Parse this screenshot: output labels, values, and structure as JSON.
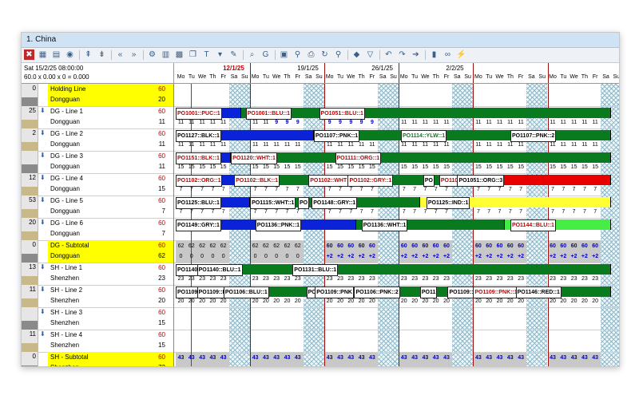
{
  "window": {
    "title": "1. China"
  },
  "toolbar": {
    "icons": [
      "close-icon",
      "grid-icon",
      "table-icon",
      "eye-icon",
      "expand-icon",
      "collapse-icon",
      "prev-icon",
      "next-icon",
      "settings-icon",
      "chart-icon",
      "palette-icon",
      "copy-icon",
      "text-icon",
      "arrow-down-icon",
      "tool-icon",
      "binoculars-icon",
      "g-icon",
      "save-icon",
      "pin-icon",
      "print-icon",
      "refresh-icon",
      "search-icon",
      "tag-icon",
      "filter-icon",
      "undo-icon",
      "redo-icon",
      "forward-icon",
      "traffic-light-icon",
      "chain-icon",
      "lightning-icon"
    ]
  },
  "info": {
    "datetime": "Sat 15/2/25 08:00:00",
    "formula": "60.0 x 0.00 x 0 = 0.000"
  },
  "dates": {
    "weeks": [
      {
        "label": "12/1/25",
        "red": true
      },
      {
        "label": "19/1/25",
        "red": false
      },
      {
        "label": "26/1/25",
        "red": false
      },
      {
        "label": "2/2/25",
        "red": false
      }
    ],
    "days": [
      "Mo",
      "Tu",
      "We",
      "Th",
      "Fr",
      "Sa",
      "Su",
      "Mo",
      "Tu",
      "We",
      "Th",
      "Fr",
      "Sa",
      "Su",
      "Mo",
      "Tu",
      "We",
      "Th",
      "Fr",
      "Sa",
      "Su",
      "Mo",
      "Tu",
      "We",
      "Th",
      "Fr",
      "Sa",
      "Su",
      "Mo",
      "Tu",
      "We",
      "Th",
      "Fr",
      "Sa",
      "Su",
      "Mo",
      "Tu",
      "We",
      "Th",
      "Fr",
      "Sa",
      "Su"
    ]
  },
  "lines": [
    {
      "num": "0",
      "name": "Holding Line",
      "city": "Dongguan",
      "cap": "60",
      "val": "20",
      "sub": true,
      "arrow": false
    },
    {
      "num": "25",
      "name": "DG - Line 1",
      "city": "Dongguan",
      "cap": "60",
      "val": "11",
      "sub": false,
      "arrow": true
    },
    {
      "num": "2",
      "name": "DG - Line 2",
      "city": "Dongguan",
      "cap": "60",
      "val": "11",
      "sub": false,
      "arrow": true
    },
    {
      "num": "",
      "name": "DG - Line 3",
      "city": "Dongguan",
      "cap": "60",
      "val": "11",
      "sub": false,
      "arrow": true
    },
    {
      "num": "12",
      "name": "DG - Line 4",
      "city": "Dongguan",
      "cap": "60",
      "val": "15",
      "sub": false,
      "arrow": true
    },
    {
      "num": "53",
      "name": "DG - Line 5",
      "city": "Dongguan",
      "cap": "60",
      "val": "7",
      "sub": false,
      "arrow": true
    },
    {
      "num": "20",
      "name": "DG - Line 6",
      "city": "Dongguan",
      "cap": "60",
      "val": "7",
      "sub": false,
      "arrow": true
    },
    {
      "num": "0",
      "name": "DG - Subtotal",
      "city": "Dongguan",
      "cap": "60",
      "val": "62",
      "sub": true,
      "arrow": false
    },
    {
      "num": "13",
      "name": "SH - Line 1",
      "city": "Shenzhen",
      "cap": "60",
      "val": "23",
      "sub": false,
      "arrow": true
    },
    {
      "num": "11",
      "name": "SH - Line 2",
      "city": "Shenzhen",
      "cap": "60",
      "val": "20",
      "sub": false,
      "arrow": true
    },
    {
      "num": "",
      "name": "SH - Line 3",
      "city": "Shenzhen",
      "cap": "60",
      "val": "15",
      "sub": false,
      "arrow": true
    },
    {
      "num": "11",
      "name": "SH - Line 4",
      "city": "Shenzhen",
      "cap": "60",
      "val": "15",
      "sub": false,
      "arrow": true
    },
    {
      "num": "0",
      "name": "SH - Subtotal",
      "city": "Shenzhen",
      "cap": "60",
      "val": "73",
      "sub": true,
      "arrow": false
    }
  ],
  "orders": [
    {
      "row": 1,
      "label": "PO1001::PUC::1"
    },
    {
      "row": 1,
      "label": "PO1001::BLU::1"
    },
    {
      "row": 1,
      "label": "PO1051::BLU::1"
    },
    {
      "row": 2,
      "label": "PO1127::BLK::1"
    },
    {
      "row": 2,
      "label": "PO1107::PNK::1"
    },
    {
      "row": 2,
      "label": "PO1114::YLW::1"
    },
    {
      "row": 2,
      "label": "PO1107::PNK::2"
    },
    {
      "row": 3,
      "label": "PO1151::BLK::1"
    },
    {
      "row": 3,
      "label": "PO1120::WHT::1"
    },
    {
      "row": 3,
      "label": "PO1111::ORG::1"
    },
    {
      "row": 4,
      "label": "PO1102::ORG::1"
    },
    {
      "row": 4,
      "label": "PO1102::BLK::1"
    },
    {
      "row": 4,
      "label": "PO1102::WHT"
    },
    {
      "row": 4,
      "label": "PO1102::GRY::1"
    },
    {
      "row": 4,
      "label": "PO"
    },
    {
      "row": 4,
      "label": "PO110"
    },
    {
      "row": 4,
      "label": "PO1051::ORG::3"
    },
    {
      "row": 5,
      "label": "PO1125::BLU::1"
    },
    {
      "row": 5,
      "label": "PO1115::WHT::1"
    },
    {
      "row": 5,
      "label": "PO"
    },
    {
      "row": 5,
      "label": "PO1148::GRY::1"
    },
    {
      "row": 5,
      "label": "PO1125::IND::1"
    },
    {
      "row": 6,
      "label": "PO1149::GRY::1"
    },
    {
      "row": 6,
      "label": "PO1136::PNK::1"
    },
    {
      "row": 6,
      "label": "PO1136::WHT::1"
    },
    {
      "row": 6,
      "label": "PO1144::BLU::1"
    },
    {
      "row": 8,
      "label": "PO1140"
    },
    {
      "row": 8,
      "label": "PO1140::BLU::1"
    },
    {
      "row": 8,
      "label": "PO1131::BLU::1"
    },
    {
      "row": 9,
      "label": "PO1109"
    },
    {
      "row": 9,
      "label": "PO1109::I"
    },
    {
      "row": 9,
      "label": "PO1106::BLU::1"
    },
    {
      "row": 9,
      "label": "PO"
    },
    {
      "row": 9,
      "label": "PO1109::PNK"
    },
    {
      "row": 9,
      "label": "PO1106::PNK::2"
    },
    {
      "row": 9,
      "label": "PO11"
    },
    {
      "row": 9,
      "label": "PO1109::"
    },
    {
      "row": 9,
      "label": "PO1109::PNK::1"
    },
    {
      "row": 9,
      "label": "PO1146::RED::1"
    }
  ],
  "rownums": [
    {
      "row": 1,
      "values": [
        "11",
        "11",
        "11",
        "11",
        "11",
        "",
        "",
        "11",
        "11",
        "9",
        "9",
        "9",
        "",
        "",
        "9",
        "9",
        "9",
        "9",
        "9",
        "",
        "",
        "11",
        "11",
        "11",
        "11",
        "11",
        "",
        "",
        "11",
        "11",
        "11",
        "11",
        "11",
        "",
        "",
        "11",
        "11",
        "11",
        "11",
        "11",
        "",
        ""
      ]
    },
    {
      "row": 2,
      "values": [
        "11",
        "11",
        "11",
        "11",
        "11",
        "",
        "",
        "11",
        "11",
        "11",
        "11",
        "11",
        "",
        "",
        "11",
        "11",
        "11",
        "11",
        "11",
        "",
        "",
        "11",
        "11",
        "11",
        "11",
        "11",
        "",
        "",
        "11",
        "11",
        "11",
        "11",
        "11",
        "",
        "",
        "11",
        "11",
        "11",
        "11",
        "11",
        "",
        ""
      ]
    },
    {
      "row": 3,
      "values": [
        "15",
        "15",
        "15",
        "15",
        "15",
        "",
        "",
        "15",
        "15",
        "15",
        "15",
        "15",
        "",
        "",
        "15",
        "15",
        "15",
        "15",
        "15",
        "",
        "",
        "15",
        "15",
        "15",
        "15",
        "15",
        "",
        "",
        "15",
        "15",
        "15",
        "15",
        "15",
        "",
        "",
        "15",
        "15",
        "15",
        "15",
        "15",
        "",
        ""
      ]
    },
    {
      "row": 4,
      "values": [
        "7",
        "7",
        "7",
        "7",
        "7",
        "",
        "",
        "7",
        "7",
        "7",
        "7",
        "7",
        "",
        "",
        "7",
        "7",
        "7",
        "7",
        "7",
        "",
        "",
        "7",
        "7",
        "7",
        "7",
        "7",
        "",
        "",
        "7",
        "7",
        "7",
        "7",
        "7",
        "",
        "",
        "7",
        "7",
        "7",
        "7",
        "7",
        "",
        ""
      ]
    },
    {
      "row": 5,
      "values": [
        "7",
        "7",
        "7",
        "7",
        "7",
        "",
        "",
        "7",
        "7",
        "7",
        "7",
        "7",
        "",
        "",
        "7",
        "7",
        "7",
        "7",
        "7",
        "",
        "",
        "7",
        "7",
        "7",
        "7",
        "7",
        "",
        "",
        "7",
        "7",
        "7",
        "7",
        "7",
        "",
        "",
        "7",
        "7",
        "7",
        "7",
        "7",
        "",
        ""
      ]
    },
    {
      "row": 7,
      "values": [
        "62",
        "62",
        "62",
        "62",
        "62",
        "",
        "",
        "62",
        "62",
        "62",
        "62",
        "62",
        "",
        "",
        "60",
        "60",
        "60",
        "60",
        "60",
        "",
        "",
        "60",
        "60",
        "60",
        "60",
        "60",
        "",
        "",
        "60",
        "60",
        "60",
        "60",
        "60",
        "",
        "",
        "60",
        "60",
        "60",
        "60",
        "60",
        "",
        ""
      ]
    },
    {
      "row": 8,
      "values": [
        "23",
        "23",
        "23",
        "23",
        "23",
        "",
        "",
        "23",
        "23",
        "23",
        "23",
        "23",
        "",
        "",
        "23",
        "23",
        "23",
        "23",
        "23",
        "",
        "",
        "23",
        "23",
        "23",
        "23",
        "23",
        "",
        "",
        "23",
        "23",
        "23",
        "23",
        "23",
        "",
        "",
        "23",
        "23",
        "23",
        "23",
        "23",
        "",
        ""
      ]
    },
    {
      "row": 9,
      "values": [
        "20",
        "20",
        "20",
        "20",
        "20",
        "",
        "",
        "20",
        "20",
        "20",
        "20",
        "20",
        "",
        "",
        "20",
        "20",
        "20",
        "20",
        "20",
        "",
        "",
        "20",
        "20",
        "20",
        "20",
        "20",
        "",
        "",
        "20",
        "20",
        "20",
        "20",
        "20",
        "",
        "",
        "20",
        "20",
        "20",
        "20",
        "20",
        "",
        ""
      ]
    },
    {
      "row": 12,
      "values": [
        "43",
        "43",
        "43",
        "43",
        "43",
        "",
        "",
        "43",
        "43",
        "43",
        "43",
        "43",
        "",
        "",
        "43",
        "43",
        "43",
        "43",
        "43",
        "",
        "",
        "43",
        "43",
        "43",
        "43",
        "43",
        "",
        "",
        "43",
        "43",
        "43",
        "43",
        "43",
        "",
        "",
        "43",
        "43",
        "43",
        "43",
        "43",
        "",
        ""
      ]
    }
  ],
  "subtotal_extra": {
    "zeros": "0",
    "plus": "+2"
  }
}
